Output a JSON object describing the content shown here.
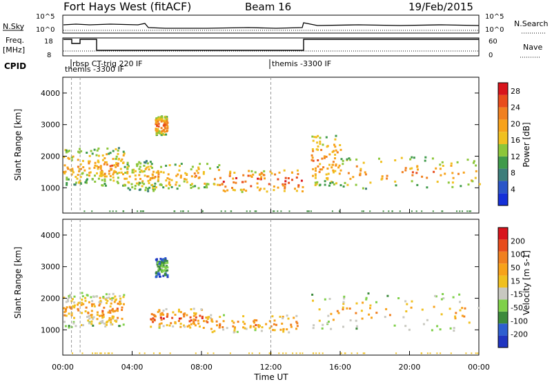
{
  "header": {
    "station": "Fort Hays West (fitACF)",
    "beam": "Beam 16",
    "date": "19/Feb/2015"
  },
  "aux": {
    "nsky_label": "N.Sky",
    "nsearch_label": "N.Search",
    "freq_label_1": "Freq.",
    "freq_label_2": "[MHz]",
    "nave_label": "Nave",
    "cpid_label": "CPID",
    "nsky_ticks": [
      "10^5",
      "10^0"
    ],
    "nsearch_ticks": [
      "10^5",
      "10^0"
    ],
    "freq_ticks": [
      "18",
      "8"
    ],
    "nave_ticks": [
      "60",
      "0"
    ],
    "cpid_programs": [
      {
        "t": 0.0,
        "label": "rbsp CT-trig 220 IF"
      },
      {
        "t": 0.0,
        "label": "themis -3300 IF"
      },
      {
        "t": 12.0,
        "label": "themis -3300 IF"
      }
    ]
  },
  "chart_data": [
    {
      "type": "heatmap",
      "name": "power",
      "ylabel": "Slant Range [km]",
      "yticks": [
        "1000",
        "2000",
        "3000",
        "4000"
      ],
      "ylim": [
        200,
        4500
      ],
      "xlim": [
        0,
        24
      ],
      "colorbar": {
        "label": "Power [dB]",
        "ticks": [
          "4",
          "8",
          "12",
          "16",
          "20",
          "24",
          "28"
        ],
        "range": [
          0,
          30
        ],
        "colors": [
          "#1530d8",
          "#2a55c8",
          "#3c7d7a",
          "#3f9a4a",
          "#8cc63a",
          "#f0c020",
          "#f7a21a",
          "#f08020",
          "#e84c1c",
          "#d8141c"
        ]
      },
      "regions": [
        {
          "t0": 0.0,
          "t1": 2.0,
          "r0": 1100,
          "r1": 2300,
          "level": 0.5
        },
        {
          "t0": 2.0,
          "t1": 3.5,
          "r0": 1100,
          "r1": 2300,
          "level": 0.55
        },
        {
          "t0": 3.5,
          "t1": 5.3,
          "r0": 900,
          "r1": 1900,
          "level": 0.45
        },
        {
          "t0": 5.3,
          "t1": 6.0,
          "r0": 2700,
          "r1": 3300,
          "level": 0.65
        },
        {
          "t0": 5.0,
          "t1": 9.0,
          "r0": 1000,
          "r1": 1800,
          "level": 0.55
        },
        {
          "t0": 9.0,
          "t1": 13.8,
          "r0": 900,
          "r1": 1600,
          "level": 0.75
        },
        {
          "t0": 14.3,
          "t1": 16.0,
          "r0": 1100,
          "r1": 2700,
          "level": 0.6
        },
        {
          "t0": 16.0,
          "t1": 24.0,
          "r0": 1000,
          "r1": 2000,
          "level": 0.55
        }
      ]
    },
    {
      "type": "heatmap",
      "name": "velocity",
      "ylabel": "Slant Range [km]",
      "yticks": [
        "1000",
        "2000",
        "3000",
        "4000"
      ],
      "ylim": [
        200,
        4500
      ],
      "xlim": [
        0,
        24
      ],
      "xlabel": "Time UT",
      "xticks": [
        "00:00",
        "04:00",
        "08:00",
        "12:00",
        "16:00",
        "20:00",
        "00:00"
      ],
      "colorbar": {
        "label": "Velocity [m s-1]",
        "ticks": [
          "200",
          "100",
          "50",
          "15",
          "-15",
          "-50",
          "-100",
          "-200"
        ],
        "colors": [
          "#2035c0",
          "#2e5fd0",
          "#3c8a3c",
          "#7fd04a",
          "#c8c8c0",
          "#f0c020",
          "#f7a21a",
          "#f08020",
          "#e84c1c",
          "#d8141c"
        ]
      },
      "regions": [
        {
          "t0": 0.0,
          "t1": 2.0,
          "r0": 1100,
          "r1": 2200,
          "level": 0.5
        },
        {
          "t0": 2.0,
          "t1": 3.5,
          "r0": 1100,
          "r1": 2200,
          "level": 0.55
        },
        {
          "t0": 5.3,
          "t1": 6.0,
          "r0": 2700,
          "r1": 3300,
          "level": 0.1
        },
        {
          "t0": 5.0,
          "t1": 8.0,
          "r0": 1100,
          "r1": 1700,
          "level": 0.7
        },
        {
          "t0": 8.0,
          "t1": 13.5,
          "r0": 950,
          "r1": 1500,
          "level": 0.6
        },
        {
          "t0": 14.3,
          "t1": 24.0,
          "r0": 1000,
          "r1": 2200,
          "level": 0.45
        }
      ]
    }
  ]
}
